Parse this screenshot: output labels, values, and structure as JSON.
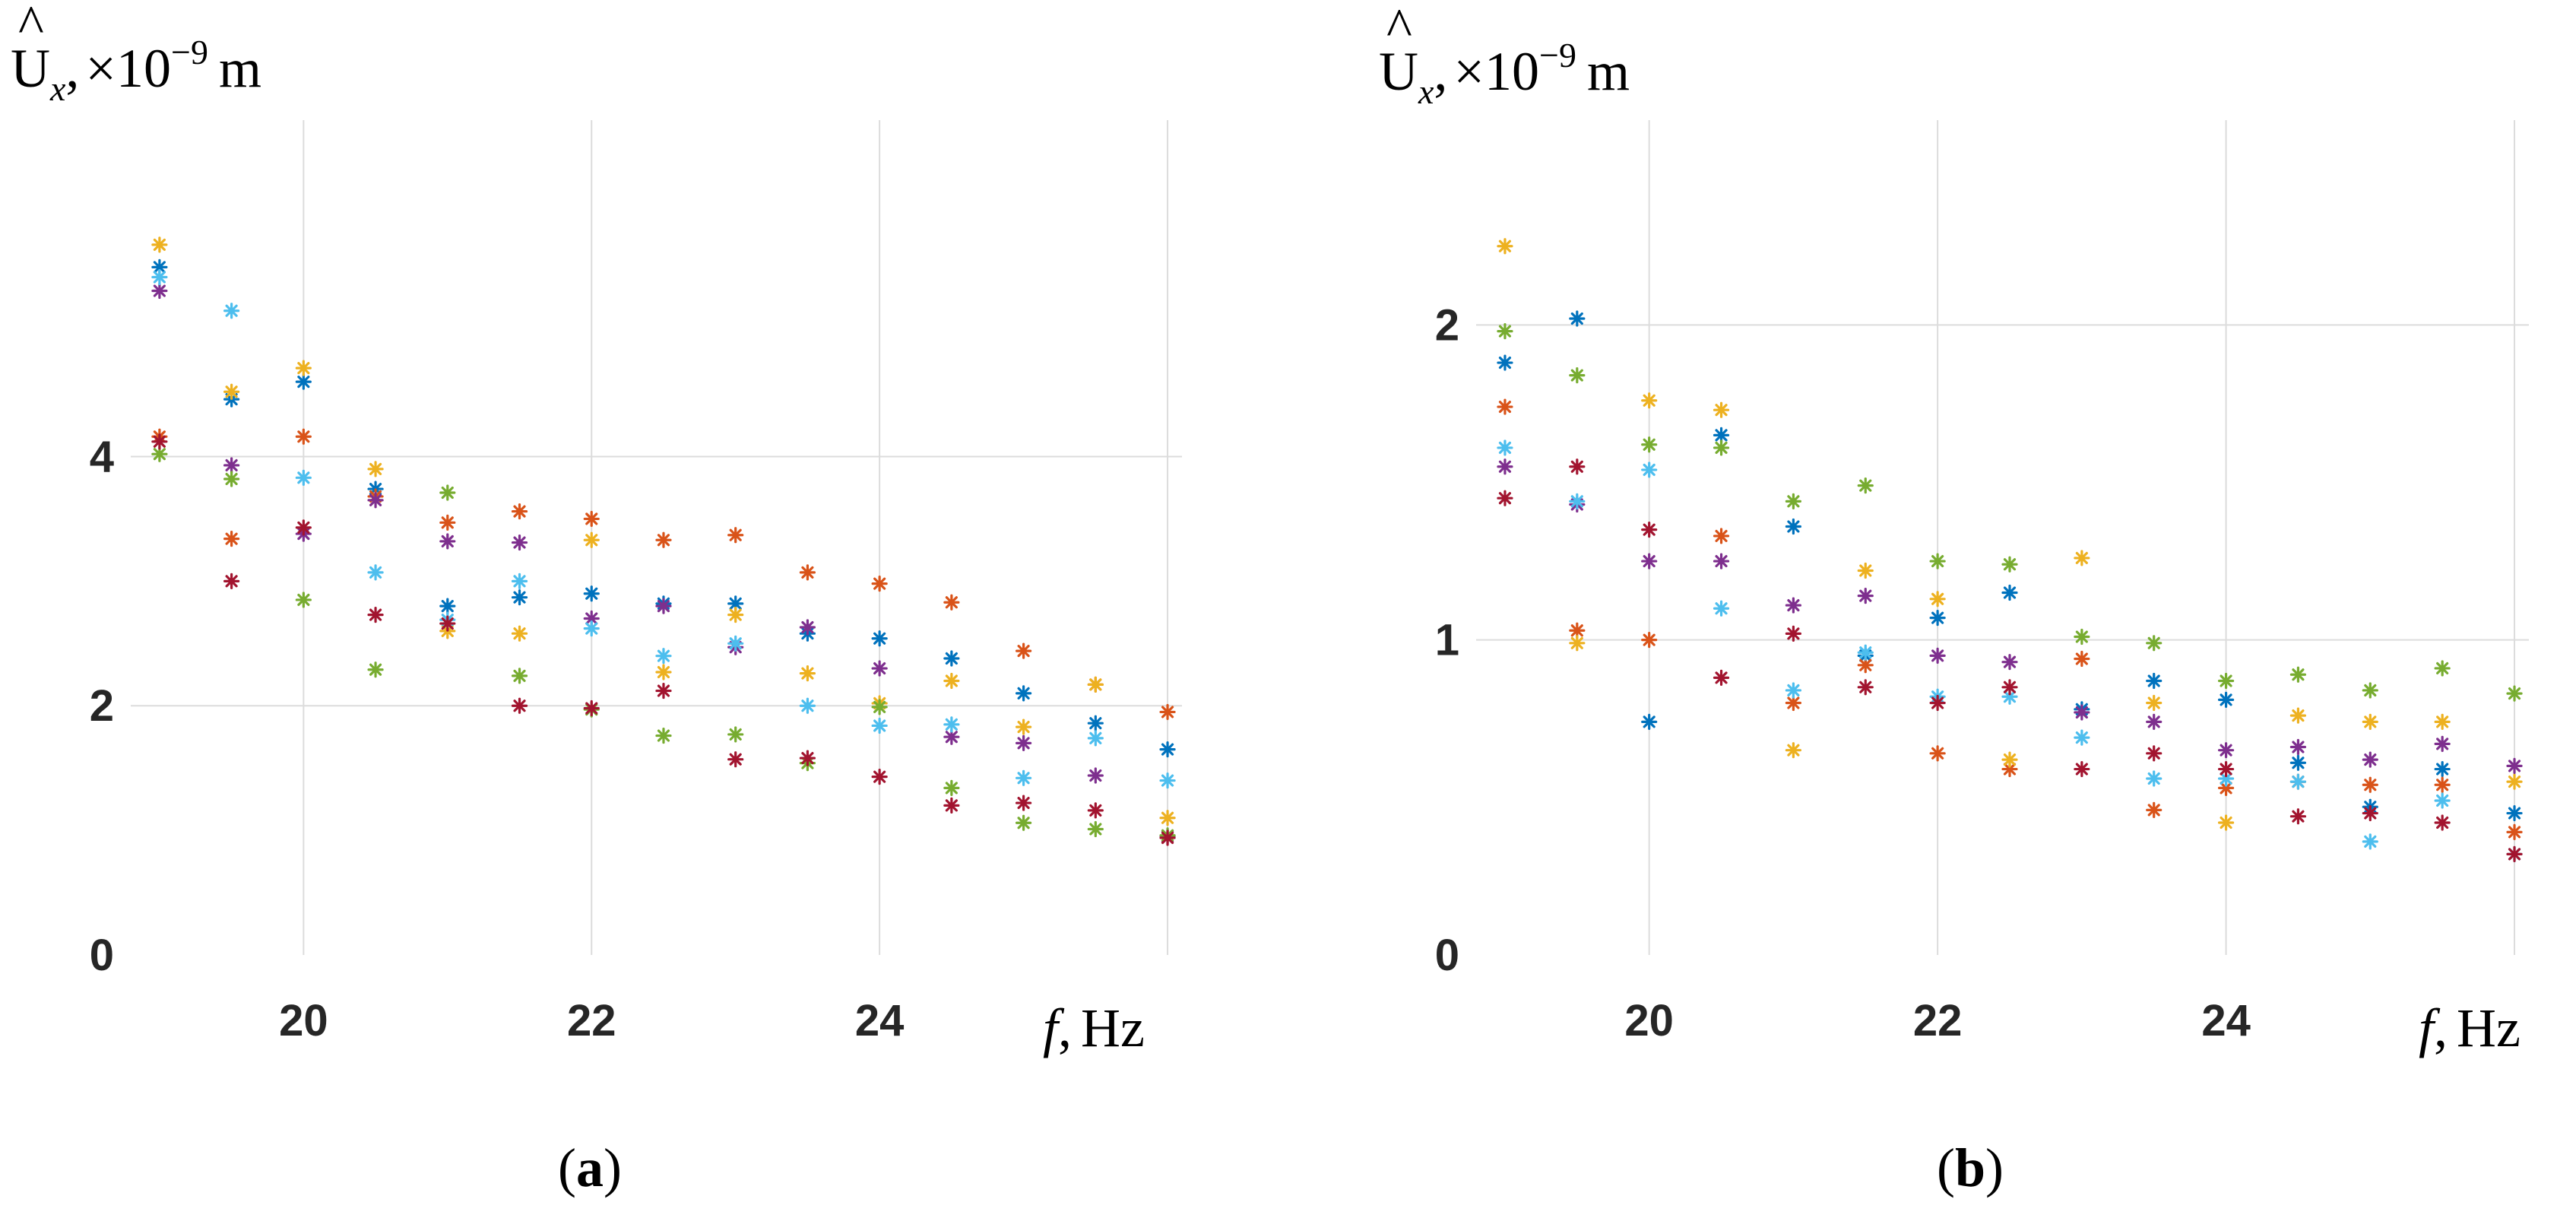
{
  "figure": {
    "panel_labels": [
      {
        "open": "(",
        "letter": "a",
        "close": ")"
      },
      {
        "open": "(",
        "letter": "b",
        "close": ")"
      }
    ]
  },
  "chart_data": [
    {
      "type": "scatter",
      "marker": "asterisk",
      "grid": true,
      "ylabel": {
        "symbol": "U",
        "hat": "^",
        "subscript": "x",
        "sep": ",",
        "mult": "×10",
        "exp": "−9",
        "unit": "m"
      },
      "xlabel": {
        "symbol": "f",
        "sep": ",",
        "unit": "Hz"
      },
      "xlim": [
        18.8,
        26.1
      ],
      "ylim": [
        0,
        6.7
      ],
      "xticks": [
        20,
        22,
        24
      ],
      "xtick_labels": [
        "20",
        "22",
        "24"
      ],
      "yticks": [
        0,
        2,
        4
      ],
      "ytick_labels": [
        "0",
        "2",
        "4"
      ],
      "colors": [
        "#0072BD",
        "#D95319",
        "#EDB120",
        "#7E2F8E",
        "#77AC30",
        "#4DBEEE",
        "#A2142F"
      ],
      "series": [
        {
          "x": [
            19,
            19.5,
            20,
            20.5,
            21,
            21.5,
            22,
            22.5,
            23,
            23.5,
            24,
            24.5,
            25,
            25.5,
            26
          ],
          "y": [
            5.52,
            4.46,
            4.6,
            3.74,
            2.8,
            2.87,
            2.9,
            2.82,
            2.82,
            2.58,
            2.54,
            2.38,
            2.1,
            1.86,
            1.65
          ]
        },
        {
          "x": [
            19,
            19.5,
            20,
            20.5,
            21,
            21.5,
            22,
            22.5,
            23,
            23.5,
            24,
            24.5,
            25,
            25.5,
            26
          ],
          "y": [
            4.16,
            3.34,
            4.16,
            3.68,
            3.47,
            3.56,
            3.5,
            3.33,
            3.37,
            3.07,
            2.98,
            2.83,
            2.44,
            2.17,
            1.95
          ]
        },
        {
          "x": [
            19,
            19.5,
            20,
            20.5,
            21,
            21.5,
            22,
            22.5,
            23,
            23.5,
            24,
            24.5,
            25,
            25.5,
            26
          ],
          "y": [
            5.7,
            4.52,
            4.71,
            3.9,
            2.6,
            2.58,
            3.33,
            2.27,
            2.73,
            2.26,
            2.02,
            2.2,
            1.83,
            2.17,
            1.1
          ]
        },
        {
          "x": [
            19,
            19.5,
            20,
            20.5,
            21,
            21.5,
            22,
            22.5,
            23,
            23.5,
            24,
            24.5,
            25,
            25.5,
            26
          ],
          "y": [
            5.33,
            3.93,
            3.38,
            3.65,
            3.32,
            3.31,
            2.7,
            2.8,
            2.47,
            2.63,
            2.3,
            1.75,
            1.7,
            1.44,
            0.95
          ]
        },
        {
          "x": [
            19,
            19.5,
            20,
            20.5,
            21,
            21.5,
            22,
            22.5,
            23,
            23.5,
            24,
            24.5,
            25,
            25.5,
            26
          ],
          "y": [
            4.02,
            3.82,
            2.85,
            2.29,
            3.71,
            2.24,
            1.97,
            1.76,
            1.77,
            1.54,
            1.99,
            1.34,
            1.06,
            1.01,
            0.96
          ]
        },
        {
          "x": [
            19,
            19.5,
            20,
            20.5,
            21,
            21.5,
            22,
            22.5,
            23,
            23.5,
            24,
            24.5,
            25,
            25.5,
            26
          ],
          "y": [
            5.44,
            5.17,
            3.83,
            3.07,
            2.69,
            3.0,
            2.62,
            2.4,
            2.5,
            2.0,
            1.84,
            1.85,
            1.42,
            1.74,
            1.4
          ]
        },
        {
          "x": [
            19,
            19.5,
            20,
            20.5,
            21,
            21.5,
            22,
            22.5,
            23,
            23.5,
            24,
            24.5,
            25,
            25.5,
            26
          ],
          "y": [
            4.12,
            3.0,
            3.43,
            2.73,
            2.66,
            2.0,
            1.98,
            2.12,
            1.57,
            1.58,
            1.43,
            1.2,
            1.22,
            1.16,
            0.94
          ]
        }
      ]
    },
    {
      "type": "scatter",
      "marker": "asterisk",
      "grid": true,
      "ylabel": {
        "symbol": "U",
        "hat": "^",
        "subscript": "x",
        "sep": ",",
        "mult": "×10",
        "exp": "−9",
        "unit": "m"
      },
      "xlabel": {
        "symbol": "f",
        "sep": ",",
        "unit": "Hz"
      },
      "xlim": [
        18.8,
        26.1
      ],
      "ylim": [
        0,
        2.65
      ],
      "xticks": [
        20,
        22,
        24
      ],
      "xtick_labels": [
        "20",
        "22",
        "24"
      ],
      "yticks": [
        0,
        1,
        2
      ],
      "ytick_labels": [
        "0",
        "1",
        "2"
      ],
      "colors": [
        "#0072BD",
        "#D95319",
        "#EDB120",
        "#7E2F8E",
        "#77AC30",
        "#4DBEEE",
        "#A2142F"
      ],
      "series": [
        {
          "x": [
            19,
            19.5,
            20,
            20.5,
            21,
            21.5,
            22,
            22.5,
            23,
            23.5,
            24,
            24.5,
            25,
            25.5,
            26
          ],
          "y": [
            1.88,
            2.02,
            0.74,
            1.65,
            1.36,
            0.95,
            1.07,
            1.15,
            0.78,
            0.87,
            0.81,
            0.61,
            0.47,
            0.59,
            0.45
          ]
        },
        {
          "x": [
            19,
            19.5,
            20,
            20.5,
            21,
            21.5,
            22,
            22.5,
            23,
            23.5,
            24,
            24.5,
            25,
            25.5,
            26
          ],
          "y": [
            1.74,
            1.03,
            1.0,
            1.33,
            0.8,
            0.92,
            0.64,
            0.59,
            0.94,
            0.46,
            0.53,
            0.55,
            0.54,
            0.54,
            0.39
          ]
        },
        {
          "x": [
            19,
            19.5,
            20,
            20.5,
            21,
            21.5,
            22,
            22.5,
            23,
            23.5,
            24,
            24.5,
            25,
            25.5,
            26
          ],
          "y": [
            2.25,
            0.99,
            1.76,
            1.73,
            0.65,
            1.22,
            1.13,
            0.62,
            1.26,
            0.8,
            0.42,
            0.76,
            0.74,
            0.74,
            0.55
          ]
        },
        {
          "x": [
            19,
            19.5,
            20,
            20.5,
            21,
            21.5,
            22,
            22.5,
            23,
            23.5,
            24,
            24.5,
            25,
            25.5,
            26
          ],
          "y": [
            1.55,
            1.43,
            1.25,
            1.25,
            1.11,
            1.14,
            0.95,
            0.93,
            0.77,
            0.74,
            0.65,
            0.66,
            0.62,
            0.67,
            0.6
          ]
        },
        {
          "x": [
            19,
            19.5,
            20,
            20.5,
            21,
            21.5,
            22,
            22.5,
            23,
            23.5,
            24,
            24.5,
            25,
            25.5,
            26
          ],
          "y": [
            1.98,
            1.84,
            1.62,
            1.61,
            1.44,
            1.49,
            1.25,
            1.24,
            1.01,
            0.99,
            0.87,
            0.89,
            0.84,
            0.91,
            0.83
          ]
        },
        {
          "x": [
            19,
            19.5,
            20,
            20.5,
            21,
            21.5,
            22,
            22.5,
            23,
            23.5,
            24,
            24.5,
            25,
            25.5,
            26
          ],
          "y": [
            1.61,
            1.44,
            1.54,
            1.1,
            0.84,
            0.96,
            0.82,
            0.82,
            0.69,
            0.56,
            0.56,
            0.55,
            0.36,
            0.49,
            0.32
          ]
        },
        {
          "x": [
            19,
            19.5,
            20,
            20.5,
            21,
            21.5,
            22,
            22.5,
            23,
            23.5,
            24,
            24.5,
            25,
            25.5,
            26
          ],
          "y": [
            1.45,
            1.55,
            1.35,
            0.88,
            1.02,
            0.85,
            0.8,
            0.85,
            0.59,
            0.64,
            0.59,
            0.44,
            0.45,
            0.42,
            0.32
          ]
        }
      ]
    }
  ]
}
